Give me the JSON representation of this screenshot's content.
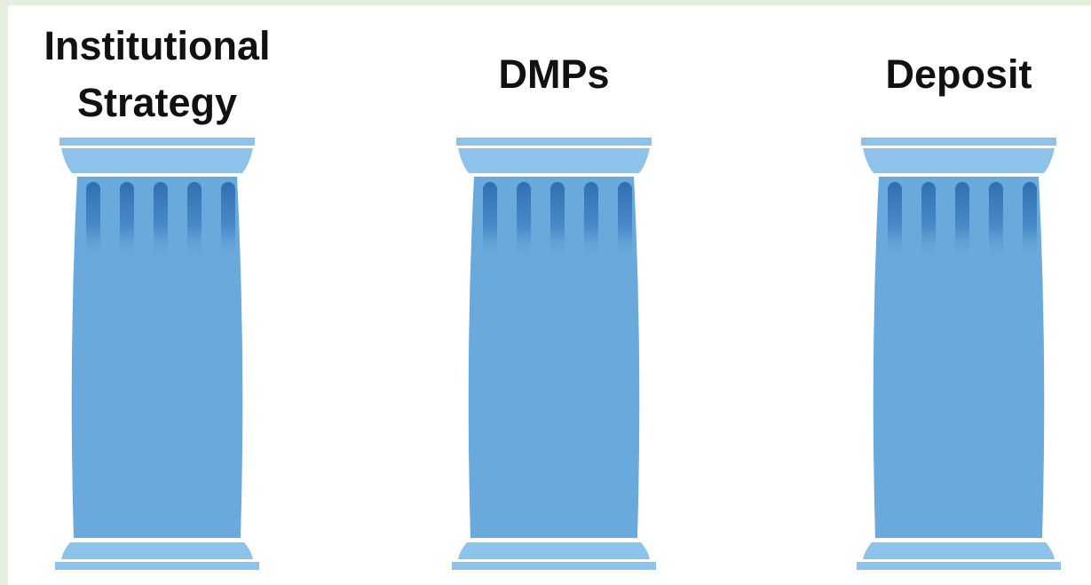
{
  "pillars": [
    {
      "label": "Institutional Strategy"
    },
    {
      "label": "DMPs"
    },
    {
      "label": "Deposit"
    }
  ]
}
